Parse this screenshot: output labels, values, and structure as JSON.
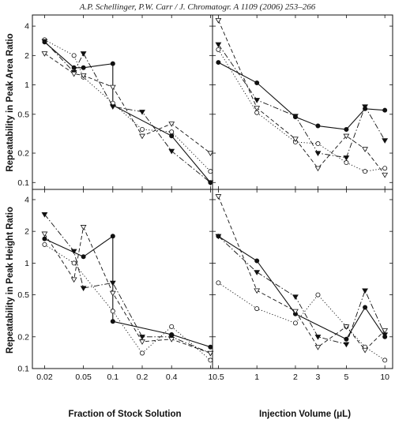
{
  "header": {
    "citation": "A.P. Schellinger, P.W. Carr / J. Chromatogr. A 1109 (2006) 253–266"
  },
  "chart_data": [
    {
      "type": "line",
      "panel": "top-left",
      "ylabel": "Repeatability in Peak Area Ratio",
      "xlabel": "",
      "xscale": "log",
      "yscale": "log",
      "xlim": [
        0.015,
        1.05
      ],
      "ylim": [
        0.085,
        5.2
      ],
      "xticks": [],
      "xtick_labels": [],
      "yticks": [
        0.1,
        0.2,
        0.5,
        1,
        2,
        4
      ],
      "ytick_labels": [
        "0.1",
        "0.2",
        "0.5",
        "1",
        "2",
        "4"
      ],
      "series": [
        {
          "marker": "filled-circle",
          "dash": "solid",
          "x": [
            0.02,
            0.04,
            0.05,
            0.1,
            0.1,
            0.4,
            1.0
          ],
          "y": [
            2.75,
            1.5,
            1.5,
            1.65,
            0.62,
            0.3,
            0.1
          ]
        },
        {
          "marker": "open-circle",
          "dash": "dotted",
          "x": [
            0.02,
            0.04,
            0.05,
            0.1,
            0.2,
            0.4,
            1.0
          ],
          "y": [
            2.9,
            2.0,
            1.2,
            0.65,
            0.35,
            0.33,
            0.13
          ]
        },
        {
          "marker": "filled-triangle-down",
          "dash": "dashdot",
          "x": [
            0.02,
            0.04,
            0.05,
            0.1,
            0.2,
            0.4,
            1.0
          ],
          "y": [
            2.8,
            1.35,
            2.1,
            0.6,
            0.53,
            0.21,
            0.1
          ]
        },
        {
          "marker": "open-triangle-down",
          "dash": "dashed",
          "x": [
            0.02,
            0.04,
            0.05,
            0.1,
            0.2,
            0.4,
            1.0
          ],
          "y": [
            2.1,
            1.3,
            1.25,
            0.95,
            0.3,
            0.4,
            0.2
          ]
        }
      ]
    },
    {
      "type": "line",
      "panel": "top-right",
      "ylabel": "",
      "xlabel": "",
      "xscale": "log",
      "yscale": "log",
      "xlim": [
        0.45,
        11.5
      ],
      "ylim": [
        0.085,
        5.2
      ],
      "xticks": [],
      "xtick_labels": [],
      "yticks": [
        0.1,
        0.2,
        0.5,
        1,
        2,
        4
      ],
      "ytick_labels": [],
      "series": [
        {
          "marker": "filled-circle",
          "dash": "solid",
          "x": [
            0.5,
            1,
            2,
            3,
            5,
            7,
            10
          ],
          "y": [
            1.7,
            1.05,
            0.47,
            0.38,
            0.35,
            0.57,
            0.55
          ]
        },
        {
          "marker": "open-circle",
          "dash": "dotted",
          "x": [
            0.5,
            1,
            2,
            3,
            5,
            7,
            10
          ],
          "y": [
            2.3,
            0.52,
            0.26,
            0.25,
            0.16,
            0.13,
            0.14
          ]
        },
        {
          "marker": "filled-triangle-down",
          "dash": "dashdot",
          "x": [
            0.5,
            1,
            2,
            3,
            5,
            7,
            10
          ],
          "y": [
            2.6,
            0.7,
            0.48,
            0.2,
            0.18,
            0.6,
            0.27
          ]
        },
        {
          "marker": "open-triangle-down",
          "dash": "dashed",
          "x": [
            0.5,
            1,
            2,
            3,
            5,
            7,
            10
          ],
          "y": [
            4.6,
            0.58,
            0.28,
            0.14,
            0.3,
            0.22,
            0.12
          ]
        }
      ]
    },
    {
      "type": "line",
      "panel": "bottom-left",
      "ylabel": "Repeatability in Peak Height Ratio",
      "xlabel": "Fraction of Stock Solution",
      "xscale": "log",
      "yscale": "log",
      "xlim": [
        0.015,
        1.05
      ],
      "ylim": [
        0.1,
        5.0
      ],
      "xticks": [
        0.02,
        0.05,
        0.1,
        0.2,
        0.4,
        1
      ],
      "xtick_labels": [
        "0.02",
        "0.05",
        "0.1",
        "0.2",
        "0.4",
        "1"
      ],
      "yticks": [
        0.1,
        0.2,
        0.5,
        1,
        2,
        4
      ],
      "ytick_labels": [
        "0.1",
        "0.2",
        "0.5",
        "1",
        "2",
        "4"
      ],
      "series": [
        {
          "marker": "filled-circle",
          "dash": "solid",
          "x": [
            0.02,
            0.05,
            0.1,
            0.1,
            0.4,
            1.0
          ],
          "y": [
            1.7,
            1.15,
            1.8,
            0.28,
            0.21,
            0.16
          ]
        },
        {
          "marker": "open-circle",
          "dash": "dotted",
          "x": [
            0.02,
            0.04,
            0.1,
            0.2,
            0.4,
            1.0
          ],
          "y": [
            1.5,
            1.0,
            0.35,
            0.14,
            0.25,
            0.12
          ]
        },
        {
          "marker": "filled-triangle-down",
          "dash": "dashdot",
          "x": [
            0.02,
            0.04,
            0.05,
            0.1,
            0.2,
            0.4,
            1.0
          ],
          "y": [
            2.9,
            1.3,
            0.58,
            0.65,
            0.2,
            0.2,
            0.14
          ]
        },
        {
          "marker": "open-triangle-down",
          "dash": "dashed",
          "x": [
            0.02,
            0.04,
            0.05,
            0.1,
            0.2,
            0.4,
            1.0
          ],
          "y": [
            1.9,
            0.7,
            2.2,
            0.52,
            0.18,
            0.19,
            0.14
          ]
        }
      ]
    },
    {
      "type": "line",
      "panel": "bottom-right",
      "ylabel": "",
      "xlabel": "Injection Volume (μL)",
      "xscale": "log",
      "yscale": "log",
      "xlim": [
        0.45,
        11.5
      ],
      "ylim": [
        0.1,
        5.0
      ],
      "xticks": [
        0.5,
        1,
        2,
        3,
        5,
        10
      ],
      "xtick_labels": [
        "0.5",
        "1",
        "2",
        "3",
        "5",
        "10"
      ],
      "yticks": [
        0.1,
        0.2,
        0.5,
        1,
        2,
        4
      ],
      "ytick_labels": [],
      "series": [
        {
          "marker": "filled-circle",
          "dash": "solid",
          "x": [
            0.5,
            1,
            2,
            5,
            7,
            10
          ],
          "y": [
            1.8,
            1.05,
            0.33,
            0.19,
            0.38,
            0.2
          ]
        },
        {
          "marker": "open-circle",
          "dash": "dotted",
          "x": [
            0.5,
            1,
            2,
            3,
            5,
            7,
            10
          ],
          "y": [
            0.65,
            0.37,
            0.27,
            0.5,
            0.25,
            0.16,
            0.12
          ]
        },
        {
          "marker": "filled-triangle-down",
          "dash": "dashdot",
          "x": [
            0.5,
            1,
            2,
            3,
            5,
            7,
            10
          ],
          "y": [
            1.8,
            0.82,
            0.48,
            0.2,
            0.17,
            0.55,
            0.21
          ]
        },
        {
          "marker": "open-triangle-down",
          "dash": "dashed",
          "x": [
            0.5,
            1,
            2,
            3,
            5,
            7,
            10
          ],
          "y": [
            4.3,
            0.55,
            0.35,
            0.16,
            0.25,
            0.15,
            0.23
          ]
        }
      ]
    }
  ]
}
